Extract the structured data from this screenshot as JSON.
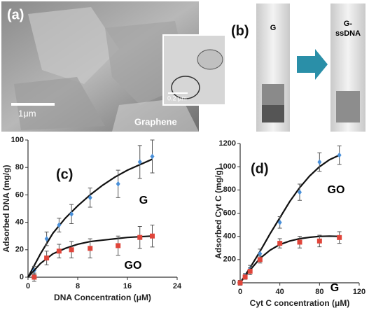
{
  "images": {
    "a": {
      "label": "(a)",
      "scale": "1μm",
      "inset_scale": "0.2 μm",
      "caption": "Graphene"
    },
    "b": {
      "label": "(b)",
      "left": "G",
      "right": [
        "G-",
        "ssDNA"
      ]
    }
  },
  "chart_data": [
    {
      "type": "scatter",
      "panel": "(c)",
      "x_label": "DNA Concentration (μM)",
      "y_label": "Adsorbed  DNA (mg/g)",
      "xlim": [
        0,
        24
      ],
      "xticks": [
        0,
        8,
        16,
        24
      ],
      "ylim": [
        0,
        100
      ],
      "yticks": [
        0,
        20,
        40,
        60,
        80,
        100
      ],
      "series": [
        {
          "name": "G",
          "color": "#4a90d9",
          "marker": "diamond",
          "x": [
            1,
            3,
            5,
            7,
            10,
            14.5,
            18,
            20
          ],
          "values": [
            5,
            28,
            38,
            46,
            58,
            68,
            84,
            88
          ],
          "errors": [
            3,
            5,
            5,
            7,
            7,
            10,
            12,
            12
          ],
          "fit": {
            "x": [
              0,
              2,
              4,
              6,
              8,
              10,
              12,
              14,
              16,
              18,
              20
            ],
            "values": [
              0,
              17,
              32,
              43,
              52,
              60,
              67,
              73,
              78,
              82,
              86
            ]
          }
        },
        {
          "name": "GO",
          "color": "#e0453a",
          "marker": "square",
          "x": [
            1,
            3,
            5,
            7,
            10,
            14.5,
            18,
            20
          ],
          "values": [
            0,
            14,
            19,
            20,
            21,
            23,
            29,
            30
          ],
          "errors": [
            3,
            5,
            5,
            6,
            7,
            7,
            8,
            8
          ],
          "fit": {
            "x": [
              0,
              2,
              4,
              6,
              8,
              10,
              12,
              14,
              16,
              18,
              20
            ],
            "values": [
              0,
              10,
              17,
              21,
              24,
              26,
              27,
              28,
              29,
              29.5,
              30
            ]
          }
        }
      ]
    },
    {
      "type": "scatter",
      "panel": "(d)",
      "x_label": "Cyt C concentration (μM)",
      "y_label": "Adsorbed Cyt C (mg/g)",
      "xlim": [
        0,
        120
      ],
      "xticks": [
        0,
        40,
        80,
        120
      ],
      "ylim": [
        0,
        1200
      ],
      "yticks": [
        0,
        200,
        400,
        600,
        800,
        1000,
        1200
      ],
      "series": [
        {
          "name": "GO",
          "color": "#4a90d9",
          "marker": "diamond",
          "x": [
            0,
            5,
            10,
            20,
            40,
            60,
            80,
            100
          ],
          "values": [
            0,
            60,
            120,
            250,
            520,
            780,
            1040,
            1100
          ],
          "errors": [
            20,
            20,
            30,
            40,
            50,
            70,
            80,
            80
          ],
          "fit": {
            "x": [
              0,
              10,
              20,
              30,
              40,
              50,
              60,
              70,
              80,
              90,
              100
            ],
            "values": [
              0,
              130,
              270,
              420,
              560,
              700,
              820,
              920,
              1000,
              1060,
              1100
            ]
          }
        },
        {
          "name": "G",
          "color": "#e0453a",
          "marker": "square",
          "x": [
            0,
            5,
            10,
            20,
            40,
            60,
            80,
            100
          ],
          "values": [
            0,
            50,
            100,
            200,
            340,
            350,
            360,
            390
          ],
          "errors": [
            20,
            20,
            30,
            30,
            40,
            50,
            50,
            50
          ],
          "fit": {
            "x": [
              0,
              10,
              20,
              30,
              40,
              50,
              60,
              70,
              80,
              90,
              100
            ],
            "values": [
              0,
              110,
              210,
              280,
              330,
              360,
              380,
              392,
              400,
              402,
              400
            ]
          }
        }
      ]
    }
  ]
}
